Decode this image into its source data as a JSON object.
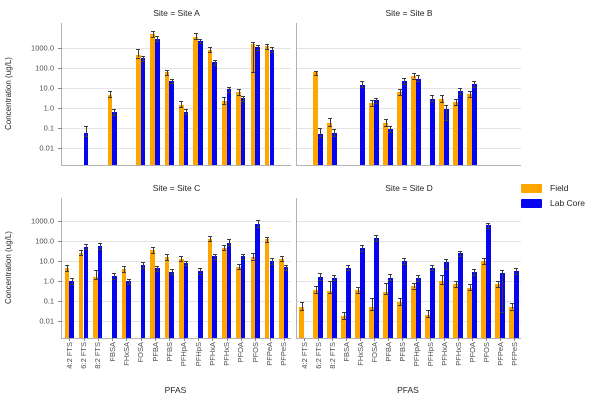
{
  "axes": {
    "y_label": "Concentration (ug/L)",
    "x_label": "PFAS",
    "y_ticks": [
      "1000.0",
      "100.0",
      "10.0",
      "1.0",
      "0.1",
      "0.01"
    ],
    "y_tick_values": [
      1000,
      100,
      10,
      1,
      0.1,
      0.01
    ]
  },
  "legend": {
    "items": [
      {
        "label": "Field",
        "color": "#FFA500"
      },
      {
        "label": "Lab Core",
        "color": "#0505EE"
      }
    ]
  },
  "colors": {
    "field": "#FFA500",
    "lab_core": "#0505EE",
    "grid": "#e4e4e4",
    "error_bar": "#3c3c3c",
    "spine": "#b3b3b3"
  },
  "chart_data": {
    "type": "bar",
    "yscale": "log",
    "ylim": [
      0.0014,
      15000
    ],
    "grid": true,
    "legend_position": "right",
    "categories": [
      "4:2 FTS",
      "6:2 FTS",
      "8:2 FTS",
      "FBSA",
      "FHxSA",
      "FOSA",
      "PFBA",
      "PFBS",
      "PFHpA",
      "PFHpS",
      "PFHxA",
      "PFHxS",
      "PFOA",
      "PFOS",
      "PFPeA",
      "PFPeS"
    ],
    "series_names": [
      "Field",
      "Lab Core"
    ],
    "facets": [
      {
        "title": "Site = Site A",
        "field": [
          null,
          null,
          null,
          4.6,
          null,
          450,
          4800,
          60,
          1.5,
          3700,
          830,
          2.2,
          6,
          1600,
          1260,
          null
        ],
        "field_hi": [
          null,
          null,
          null,
          7,
          null,
          900,
          7500,
          80,
          2.3,
          5500,
          1100,
          3.5,
          8.6,
          2100,
          1600,
          null
        ],
        "field_lo": [
          null,
          null,
          null,
          null,
          null,
          null,
          null,
          null,
          null,
          null,
          null,
          null,
          null,
          60,
          null,
          null
        ],
        "lab": [
          null,
          0.055,
          null,
          0.6,
          null,
          310,
          2900,
          23,
          0.65,
          2300,
          200,
          8.6,
          3.2,
          1100,
          830,
          null
        ],
        "lab_hi": [
          null,
          0.12,
          null,
          0.9,
          null,
          420,
          3800,
          30,
          0.9,
          3000,
          260,
          11,
          4.2,
          1500,
          1100,
          null
        ],
        "lab_lo": [
          null,
          null,
          null,
          null,
          null,
          null,
          null,
          null,
          null,
          null,
          null,
          null,
          null,
          null,
          null,
          null
        ]
      },
      {
        "title": "Site = Site B",
        "field": [
          null,
          60,
          0.17,
          null,
          null,
          1.7,
          0.17,
          6,
          40,
          null,
          2.7,
          1.9,
          5,
          null,
          null,
          null
        ],
        "field_hi": [
          null,
          75,
          0.33,
          null,
          null,
          2.5,
          0.27,
          9,
          58,
          null,
          4.3,
          3.0,
          7,
          null,
          null,
          null
        ],
        "field_lo": [
          null,
          null,
          null,
          null,
          null,
          null,
          null,
          null,
          null,
          null,
          null,
          null,
          null,
          null,
          null,
          null
        ],
        "lab": [
          null,
          0.05,
          0.055,
          null,
          15,
          2.5,
          0.086,
          22,
          29,
          3.0,
          0.9,
          6.8,
          16,
          null,
          null,
          null
        ],
        "lab_hi": [
          null,
          0.1,
          0.09,
          null,
          22,
          3.3,
          0.12,
          32,
          43,
          4.3,
          1.5,
          10.5,
          23,
          null,
          null,
          null
        ],
        "lab_lo": [
          null,
          null,
          null,
          null,
          null,
          null,
          null,
          null,
          null,
          null,
          0.24,
          null,
          null,
          null,
          null,
          null
        ]
      },
      {
        "title": "Site = Site C",
        "field": [
          4.3,
          26,
          1.6,
          null,
          3.8,
          null,
          35,
          16,
          13,
          null,
          130,
          46,
          5.2,
          16,
          122,
          13
        ],
        "field_hi": [
          6.2,
          35,
          3.5,
          null,
          5.5,
          null,
          52,
          23,
          17,
          null,
          170,
          60,
          6.8,
          24,
          158,
          18
        ],
        "field_lo": [
          null,
          null,
          1.2,
          null,
          null,
          null,
          null,
          null,
          null,
          null,
          null,
          null,
          null,
          null,
          null,
          null
        ],
        "lab": [
          0.96,
          52,
          56,
          1.8,
          0.96,
          6.3,
          4.3,
          2.9,
          8.2,
          3.2,
          18,
          82,
          18,
          700,
          10,
          5.0
        ],
        "lab_hi": [
          1.35,
          68,
          76,
          2.6,
          1.3,
          8.9,
          5.5,
          3.8,
          10.5,
          4.6,
          23,
          120,
          23,
          1120,
          14,
          6.5
        ],
        "lab_lo": [
          null,
          null,
          null,
          null,
          null,
          null,
          null,
          null,
          null,
          null,
          null,
          null,
          null,
          null,
          null,
          null
        ]
      },
      {
        "title": "Site = Site D",
        "field": [
          0.05,
          0.35,
          0.32,
          0.017,
          0.35,
          0.05,
          0.3,
          0.09,
          0.57,
          0.021,
          1.0,
          0.68,
          0.46,
          10,
          0.68,
          0.051
        ],
        "field_hi": [
          0.085,
          0.58,
          1.0,
          0.03,
          0.52,
          0.14,
          0.8,
          0.15,
          0.83,
          0.035,
          1.9,
          1.0,
          0.68,
          14.7,
          1.0,
          0.083
        ],
        "field_lo": [
          null,
          null,
          0.25,
          null,
          null,
          null,
          null,
          null,
          null,
          null,
          null,
          null,
          null,
          null,
          null,
          null
        ],
        "lab": [
          null,
          1.6,
          1.45,
          4.6,
          45,
          140,
          1.5,
          10,
          1.4,
          4.6,
          8.6,
          25,
          2.8,
          610,
          2.5,
          3.2
        ],
        "lab_hi": [
          null,
          2.4,
          2.1,
          6.6,
          65,
          195,
          2.3,
          14.5,
          2.0,
          6.6,
          12,
          33,
          4.0,
          790,
          3.7,
          4.6
        ],
        "lab_lo": [
          null,
          null,
          null,
          null,
          null,
          null,
          null,
          null,
          null,
          null,
          4.0,
          null,
          null,
          null,
          0.03,
          null
        ]
      }
    ]
  }
}
